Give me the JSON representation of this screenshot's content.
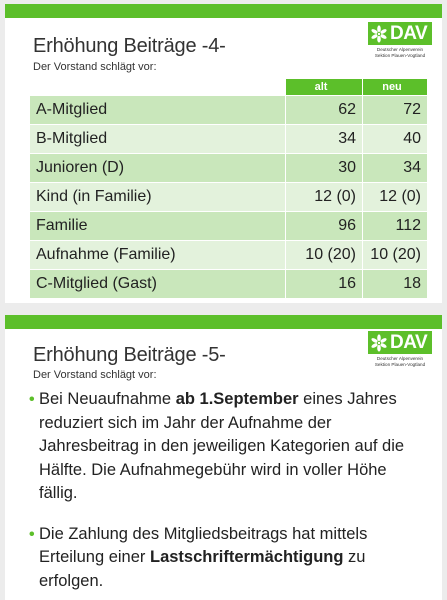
{
  "slide1": {
    "title": "Erhöhung Beiträge -4-",
    "subtitle": "Der Vorstand schlägt vor:",
    "logo": {
      "text": "DAV",
      "line1": "Deutscher Alpenverein",
      "line2": "Sektion Plauen-Vogtland"
    },
    "table": {
      "headers": {
        "name": "",
        "alt": "alt",
        "neu": "neu"
      },
      "rows": [
        {
          "name": "A-Mitglied",
          "alt": "62",
          "neu": "72"
        },
        {
          "name": "B-Mitglied",
          "alt": "34",
          "neu": "40"
        },
        {
          "name": "Junioren (D)",
          "alt": "30",
          "neu": "34"
        },
        {
          "name": "Kind (in Familie)",
          "alt": "12 (0)",
          "neu": "12 (0)"
        },
        {
          "name": "Familie",
          "alt": "96",
          "neu": "112"
        },
        {
          "name": "Aufnahme (Familie)",
          "alt": "10 (20)",
          "neu": "10 (20)"
        },
        {
          "name": "C-Mitglied (Gast)",
          "alt": "16",
          "neu": "18"
        }
      ]
    }
  },
  "slide2": {
    "title": "Erhöhung Beiträge -5-",
    "subtitle": "Der Vorstand schlägt vor:",
    "logo": {
      "text": "DAV",
      "line1": "Deutscher Alpenverein",
      "line2": "Sektion Plauen-Vogtland"
    },
    "bullets": [
      {
        "pre": "Bei Neuaufnahme ",
        "bold": "ab 1.September",
        "post": " eines Jahres reduziert sich im Jahr der Aufnahme der Jahresbeitrag in den jeweiligen Kategorien auf die Hälfte. Die Aufnahmegebühr wird in voller Höhe fällig."
      },
      {
        "pre": "Die Zahlung des Mitgliedsbeitrags hat mittels Erteilung einer ",
        "bold": "Lastschriftermächtigung",
        "post": " zu erfolgen."
      }
    ]
  },
  "colors": {
    "accent": "#5cbf2a",
    "row_dark": "#c9e7bb",
    "row_light": "#e3f2dc",
    "text": "#222222"
  },
  "icons": {
    "logo_mark": "edelweiss-icon"
  }
}
